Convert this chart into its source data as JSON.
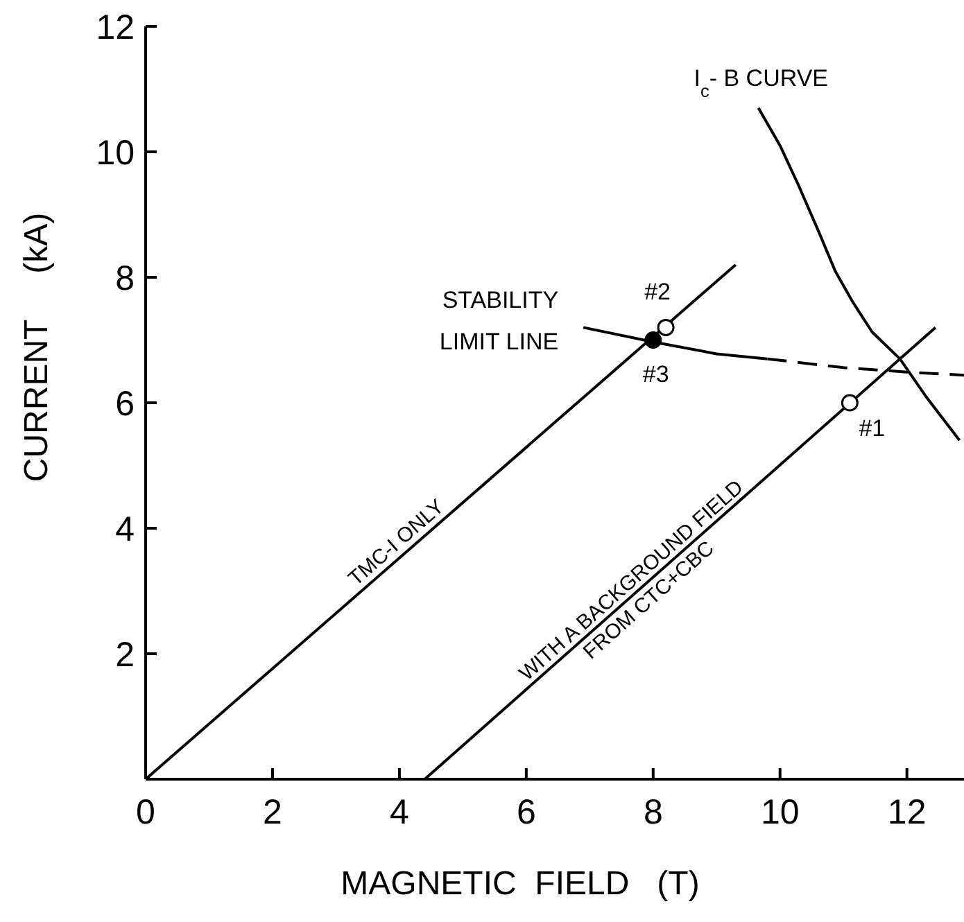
{
  "chart_data": {
    "type": "line",
    "xlabel": "MAGNETIC  FIELD   (T)",
    "ylabel": "CURRENT     (kA)",
    "xlim": [
      0,
      12.9
    ],
    "xticks": [
      0,
      2,
      4,
      6,
      8,
      10,
      12
    ],
    "ylim": [
      0,
      12
    ],
    "yticks": [
      2,
      4,
      6,
      8,
      10,
      12
    ],
    "series": [
      {
        "name": "TMC-I ONLY",
        "color": "#000000",
        "line_style": "solid",
        "x": [
          0,
          9.3
        ],
        "values": [
          0,
          8.2
        ]
      },
      {
        "name": "WITH A BACKGROUND FIELD FROM CTC+CBC",
        "color": "#000000",
        "line_style": "solid",
        "x": [
          4.4,
          12.45
        ],
        "values": [
          0,
          7.2
        ]
      },
      {
        "color": "#000000",
        "line_style": "solid",
        "x": [
          6.9,
          8.0,
          9.0,
          9.8
        ],
        "values": [
          7.2,
          6.97,
          6.78,
          6.7
        ]
      },
      {
        "color": "#000000",
        "line_style": "dashed",
        "x": [
          9.8,
          11.0,
          12.0,
          12.9
        ],
        "values": [
          6.7,
          6.56,
          6.49,
          6.44
        ]
      },
      {
        "color": "#000000",
        "line_style": "solid",
        "x": [
          9.66,
          10.0,
          10.29,
          10.6,
          10.87,
          11.15,
          11.45,
          11.89,
          12.3,
          12.83
        ],
        "values": [
          10.7,
          10.1,
          9.47,
          8.75,
          8.1,
          7.6,
          7.13,
          6.7,
          6.1,
          5.4
        ]
      },
      {
        "type": "scatter",
        "color": "#ffffff",
        "marker": "circle",
        "x": [
          8.2,
          11.1
        ],
        "values": [
          7.2,
          6.0
        ]
      },
      {
        "type": "scatter",
        "color": "#000000",
        "marker": "circle",
        "x": [
          8.0
        ],
        "values": [
          7.0
        ]
      }
    ],
    "annotations": [
      {
        "text": "I$_{c}$- B  CURVE",
        "x": 9.7,
        "y": 10.7
      },
      {
        "text": "STABILITY LIMIT LINE",
        "x": 6.9,
        "y": 7.2
      },
      {
        "text": "#2",
        "x": 8.2,
        "y": 7.2
      },
      {
        "text": "#3",
        "x": 8.0,
        "y": 7.0
      },
      {
        "text": "#1",
        "x": 11.1,
        "y": 6.0
      }
    ]
  }
}
